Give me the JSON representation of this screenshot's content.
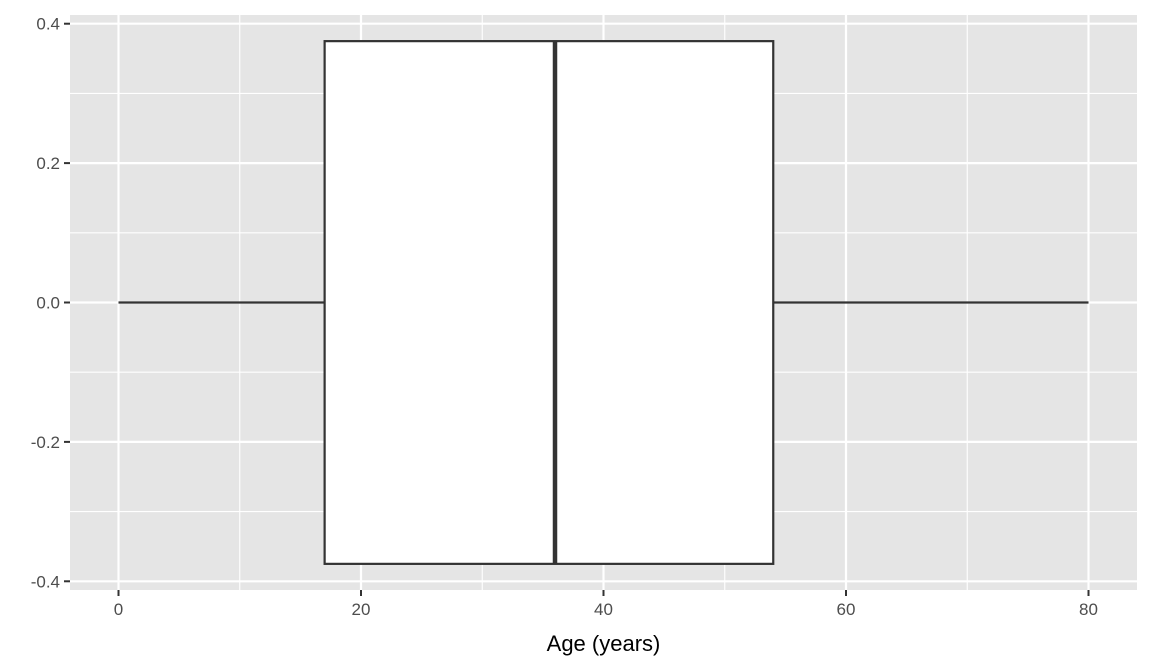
{
  "chart_data": {
    "type": "boxplot",
    "title": "",
    "xlabel": "Age (years)",
    "ylabel": "",
    "xlim": [
      -4,
      84
    ],
    "ylim": [
      -0.4125,
      0.4125
    ],
    "x_ticks": [
      0,
      20,
      40,
      60,
      80
    ],
    "x_tick_labels": [
      "0",
      "20",
      "40",
      "60",
      "80"
    ],
    "y_ticks": [
      -0.4,
      -0.2,
      0.0,
      0.2,
      0.4
    ],
    "y_tick_labels": [
      "-0.4",
      "-0.2",
      "0.0",
      "0.2",
      "0.4"
    ],
    "grid": true,
    "orientation": "horizontal",
    "box": {
      "min": 0,
      "q1": 17,
      "median": 36,
      "q3": 54,
      "max": 80,
      "y_low": -0.375,
      "y_high": 0.375
    },
    "colors": {
      "panel": "#e5e5e5",
      "grid": "#ffffff",
      "box_fill": "#ffffff",
      "box_line": "#333333"
    }
  }
}
